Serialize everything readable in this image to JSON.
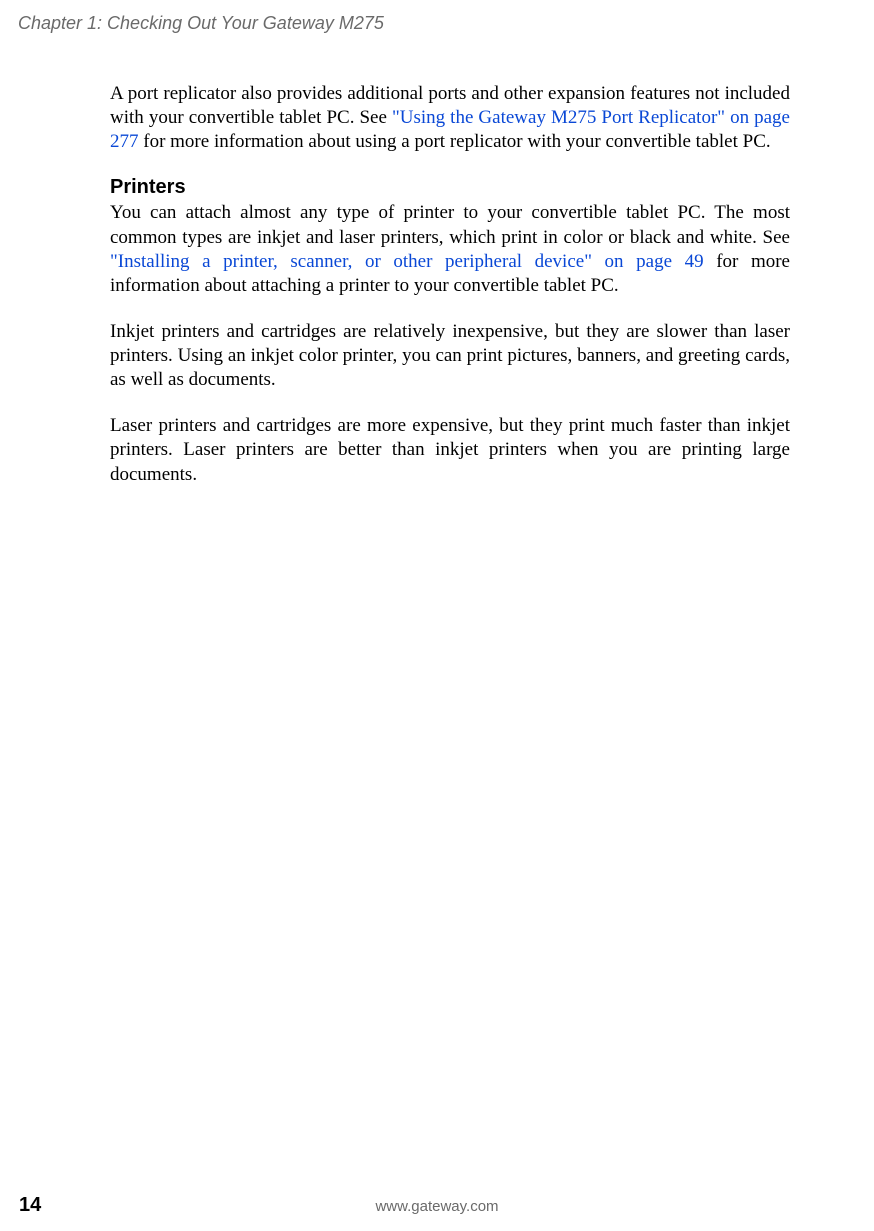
{
  "header": {
    "chapter_title": "Chapter 1: Checking Out Your Gateway M275"
  },
  "content": {
    "para1_a": "A port replicator also provides additional ports and other expansion features not included with your convertible tablet PC. See ",
    "para1_link": "\"Using the Gateway M275 Port Replicator\" on page 277",
    "para1_b": " for more information about using a port replicator with your convertible tablet PC.",
    "section_heading": "Printers",
    "para2_a": "You can attach almost any type of printer to your convertible tablet PC. The most common types are inkjet and laser printers, which print in color or black and white. See ",
    "para2_link": "\"Installing a printer, scanner, or other peripheral device\" on page 49",
    "para2_b": " for more information about attaching a printer to your convertible tablet PC.",
    "para3": "Inkjet printers and cartridges are relatively inexpensive, but they are slower than laser printers. Using an inkjet color printer, you can print pictures, banners, and greeting cards, as well as documents.",
    "para4": "Laser printers and cartridges are more expensive, but they print much faster than inkjet printers. Laser printers are better than inkjet printers when you are printing large documents."
  },
  "footer": {
    "page_number": "14",
    "url": "www.gateway.com"
  },
  "style": {
    "link_color": "#0a48d6",
    "header_color": "#6a6a6a",
    "body_font": "serif",
    "header_font": "sans-serif",
    "background_color": "#ffffff"
  }
}
